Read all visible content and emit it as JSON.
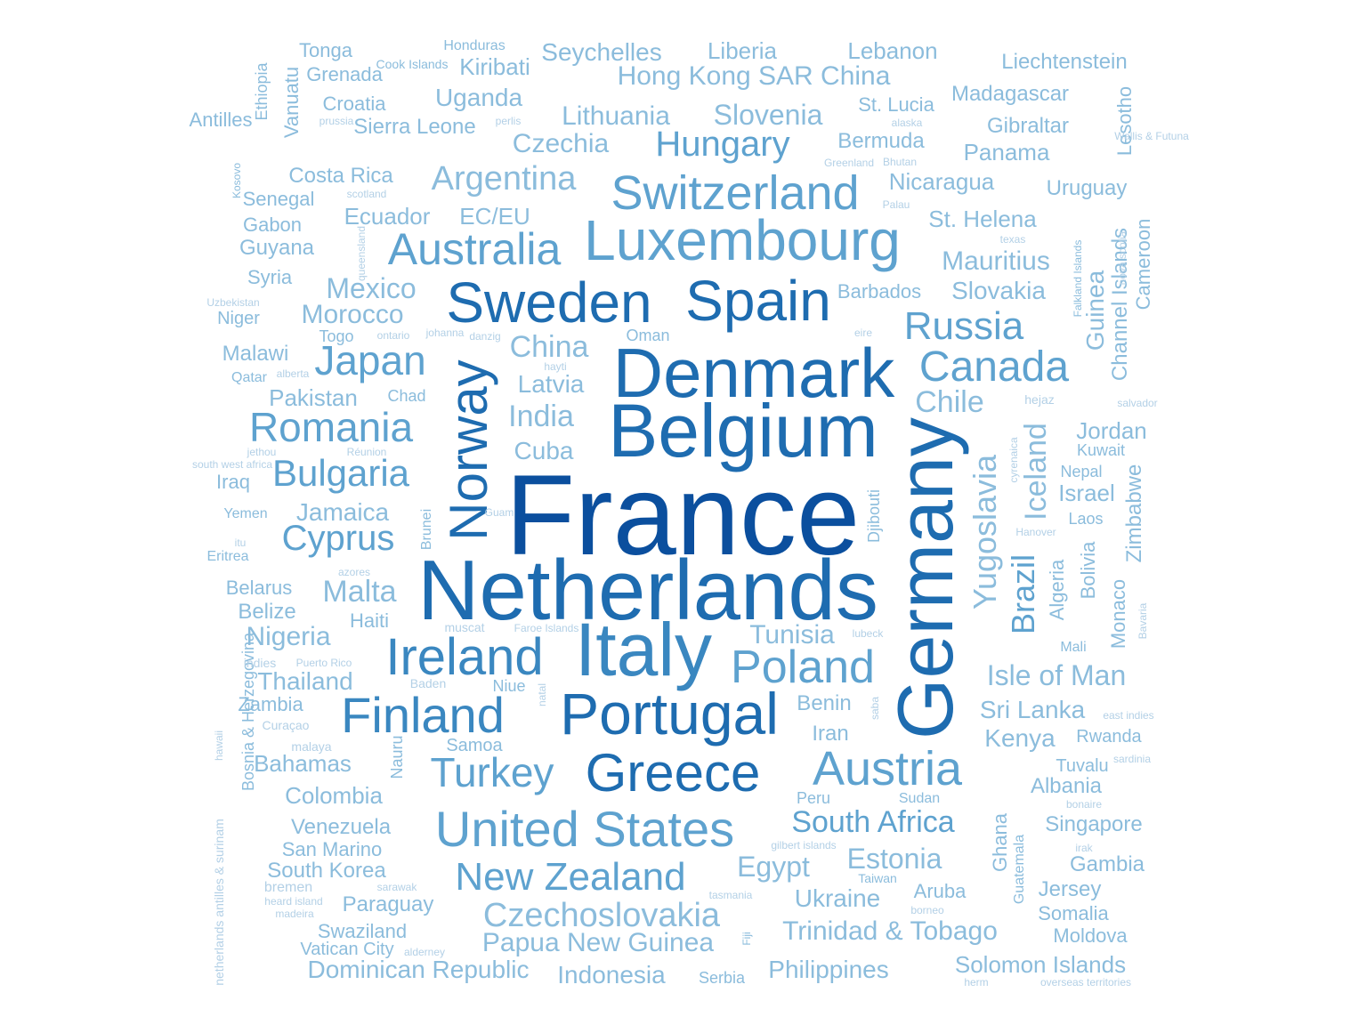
{
  "colors": {
    "t1": "#0b4f9e",
    "t2": "#1e6cb0",
    "t3": "#3a87c0",
    "t4": "#5ea2cf",
    "t5": "#8bbcdc",
    "t6": "#b3d0e6"
  },
  "words": [
    {
      "text": "France",
      "v": false,
      "c": "t1"
    },
    {
      "text": "Netherlands",
      "v": false,
      "c": "t2"
    },
    {
      "text": "Belgium",
      "v": false,
      "c": "t2"
    },
    {
      "text": "Germany",
      "v": true,
      "c": "t2"
    },
    {
      "text": "Denmark",
      "v": false,
      "c": "t2"
    },
    {
      "text": "Italy",
      "v": false,
      "c": "t3"
    },
    {
      "text": "Sweden",
      "v": false,
      "c": "t2"
    },
    {
      "text": "Spain",
      "v": false,
      "c": "t2"
    },
    {
      "text": "Portugal",
      "v": false,
      "c": "t2"
    },
    {
      "text": "Norway",
      "v": true,
      "c": "t2"
    },
    {
      "text": "Greece",
      "v": false,
      "c": "t2"
    },
    {
      "text": "Luxembourg",
      "v": false,
      "c": "t4"
    },
    {
      "text": "Finland",
      "v": false,
      "c": "t3"
    },
    {
      "text": "Ireland",
      "v": false,
      "c": "t3"
    },
    {
      "text": "Switzerland",
      "v": false,
      "c": "t4"
    },
    {
      "text": "United States",
      "v": false,
      "c": "t4"
    },
    {
      "text": "Austria",
      "v": false,
      "c": "t4"
    },
    {
      "text": "Australia",
      "v": false,
      "c": "t4"
    },
    {
      "text": "Poland",
      "v": false,
      "c": "t4"
    },
    {
      "text": "Canada",
      "v": false,
      "c": "t4"
    },
    {
      "text": "Turkey",
      "v": false,
      "c": "t4"
    },
    {
      "text": "Japan",
      "v": false,
      "c": "t4"
    },
    {
      "text": "Romania",
      "v": false,
      "c": "t4"
    },
    {
      "text": "Russia",
      "v": false,
      "c": "t4"
    },
    {
      "text": "New Zealand",
      "v": false,
      "c": "t4"
    },
    {
      "text": "Hungary",
      "v": false,
      "c": "t4"
    },
    {
      "text": "Bulgaria",
      "v": false,
      "c": "t4"
    },
    {
      "text": "Yugoslavia",
      "v": true,
      "c": "t5"
    },
    {
      "text": "Czechoslovakia",
      "v": false,
      "c": "t5"
    },
    {
      "text": "South Africa",
      "v": false,
      "c": "t4"
    },
    {
      "text": "Cyprus",
      "v": false,
      "c": "t4"
    },
    {
      "text": "Argentina",
      "v": false,
      "c": "t5"
    },
    {
      "text": "Brazil",
      "v": true,
      "c": "t4"
    },
    {
      "text": "Iceland",
      "v": true,
      "c": "t5"
    },
    {
      "text": "Chile",
      "v": false,
      "c": "t5"
    },
    {
      "text": "India",
      "v": false,
      "c": "t5"
    },
    {
      "text": "China",
      "v": false,
      "c": "t5"
    },
    {
      "text": "Egypt",
      "v": false,
      "c": "t5"
    },
    {
      "text": "Estonia",
      "v": false,
      "c": "t5"
    },
    {
      "text": "Malta",
      "v": false,
      "c": "t5"
    },
    {
      "text": "Slovenia",
      "v": false,
      "c": "t5"
    },
    {
      "text": "Czechia",
      "v": false,
      "c": "t5"
    },
    {
      "text": "Mexico",
      "v": false,
      "c": "t5"
    },
    {
      "text": "Morocco",
      "v": false,
      "c": "t5"
    },
    {
      "text": "Mauritius",
      "v": false,
      "c": "t5"
    },
    {
      "text": "Slovakia",
      "v": false,
      "c": "t5"
    },
    {
      "text": "Latvia",
      "v": false,
      "c": "t5"
    },
    {
      "text": "Cuba",
      "v": false,
      "c": "t5"
    },
    {
      "text": "Lithuania",
      "v": false,
      "c": "t5"
    },
    {
      "text": "Hong Kong SAR China",
      "v": false,
      "c": "t5"
    },
    {
      "text": "Tunisia",
      "v": false,
      "c": "t5"
    },
    {
      "text": "Isle of Man",
      "v": false,
      "c": "t5"
    },
    {
      "text": "Papua New Guinea",
      "v": false,
      "c": "t5"
    },
    {
      "text": "Trinidad & Tobago",
      "v": false,
      "c": "t5"
    },
    {
      "text": "Ukraine",
      "v": false,
      "c": "t5"
    },
    {
      "text": "Nigeria",
      "v": false,
      "c": "t5"
    },
    {
      "text": "Jamaica",
      "v": false,
      "c": "t5"
    },
    {
      "text": "Pakistan",
      "v": false,
      "c": "t5"
    },
    {
      "text": "Ecuador",
      "v": false,
      "c": "t5"
    },
    {
      "text": "EC/EU",
      "v": false,
      "c": "t5"
    },
    {
      "text": "Sri Lanka",
      "v": false,
      "c": "t5"
    },
    {
      "text": "Kenya",
      "v": false,
      "c": "t5"
    },
    {
      "text": "Jordan",
      "v": false,
      "c": "t5"
    },
    {
      "text": "Israel",
      "v": false,
      "c": "t5"
    },
    {
      "text": "Thailand",
      "v": false,
      "c": "t5"
    },
    {
      "text": "Bahamas",
      "v": false,
      "c": "t5"
    },
    {
      "text": "Colombia",
      "v": false,
      "c": "t5"
    },
    {
      "text": "Venezuela",
      "v": false,
      "c": "t5"
    },
    {
      "text": "South Korea",
      "v": false,
      "c": "t5"
    },
    {
      "text": "Dominican Republic",
      "v": false,
      "c": "t5"
    },
    {
      "text": "Indonesia",
      "v": false,
      "c": "t5"
    },
    {
      "text": "Philippines",
      "v": false,
      "c": "t5"
    },
    {
      "text": "Solomon Islands",
      "v": false,
      "c": "t5"
    },
    {
      "text": "Singapore",
      "v": false,
      "c": "t5"
    },
    {
      "text": "Albania",
      "v": false,
      "c": "t5"
    },
    {
      "text": "Gambia",
      "v": false,
      "c": "t5"
    },
    {
      "text": "Jersey",
      "v": false,
      "c": "t5"
    },
    {
      "text": "Somalia",
      "v": false,
      "c": "t5"
    },
    {
      "text": "Moldova",
      "v": false,
      "c": "t5"
    },
    {
      "text": "Aruba",
      "v": false,
      "c": "t5"
    },
    {
      "text": "Paraguay",
      "v": false,
      "c": "t5"
    },
    {
      "text": "Swaziland",
      "v": false,
      "c": "t5"
    },
    {
      "text": "Vatican City",
      "v": false,
      "c": "t5"
    },
    {
      "text": "San Marino",
      "v": false,
      "c": "t5"
    },
    {
      "text": "Bosnia & Herzegovina",
      "v": true,
      "c": "t5"
    },
    {
      "text": "Zambia",
      "v": false,
      "c": "t5"
    },
    {
      "text": "Belize",
      "v": false,
      "c": "t5"
    },
    {
      "text": "Belarus",
      "v": false,
      "c": "t5"
    },
    {
      "text": "Haiti",
      "v": false,
      "c": "t5"
    },
    {
      "text": "Iraq",
      "v": false,
      "c": "t5"
    },
    {
      "text": "Malawi",
      "v": false,
      "c": "t5"
    },
    {
      "text": "Niger",
      "v": false,
      "c": "t5"
    },
    {
      "text": "Syria",
      "v": false,
      "c": "t5"
    },
    {
      "text": "Guyana",
      "v": false,
      "c": "t5"
    },
    {
      "text": "Gabon",
      "v": false,
      "c": "t5"
    },
    {
      "text": "Senegal",
      "v": false,
      "c": "t5"
    },
    {
      "text": "Costa Rica",
      "v": false,
      "c": "t5"
    },
    {
      "text": "Sierra Leone",
      "v": false,
      "c": "t5"
    },
    {
      "text": "Croatia",
      "v": false,
      "c": "t5"
    },
    {
      "text": "Grenada",
      "v": false,
      "c": "t5"
    },
    {
      "text": "Tonga",
      "v": false,
      "c": "t5"
    },
    {
      "text": "Honduras",
      "v": false,
      "c": "t5"
    },
    {
      "text": "Cook Islands",
      "v": false,
      "c": "t5"
    },
    {
      "text": "Kiribati",
      "v": false,
      "c": "t5"
    },
    {
      "text": "Uganda",
      "v": false,
      "c": "t5"
    },
    {
      "text": "Seychelles",
      "v": false,
      "c": "t5"
    },
    {
      "text": "Liberia",
      "v": false,
      "c": "t5"
    },
    {
      "text": "Lebanon",
      "v": false,
      "c": "t5"
    },
    {
      "text": "Liechtenstein",
      "v": false,
      "c": "t5"
    },
    {
      "text": "Madagascar",
      "v": false,
      "c": "t5"
    },
    {
      "text": "St. Lucia",
      "v": false,
      "c": "t5"
    },
    {
      "text": "Gibraltar",
      "v": false,
      "c": "t5"
    },
    {
      "text": "Bermuda",
      "v": false,
      "c": "t5"
    },
    {
      "text": "Panama",
      "v": false,
      "c": "t5"
    },
    {
      "text": "Nicaragua",
      "v": false,
      "c": "t5"
    },
    {
      "text": "Uruguay",
      "v": false,
      "c": "t5"
    },
    {
      "text": "St. Helena",
      "v": false,
      "c": "t5"
    },
    {
      "text": "Barbados",
      "v": false,
      "c": "t5"
    },
    {
      "text": "Togo",
      "v": false,
      "c": "t5"
    },
    {
      "text": "Oman",
      "v": false,
      "c": "t5"
    },
    {
      "text": "Chad",
      "v": false,
      "c": "t5"
    },
    {
      "text": "Qatar",
      "v": false,
      "c": "t5"
    },
    {
      "text": "Yemen",
      "v": false,
      "c": "t5"
    },
    {
      "text": "Eritrea",
      "v": false,
      "c": "t5"
    },
    {
      "text": "Niue",
      "v": false,
      "c": "t5"
    },
    {
      "text": "Samoa",
      "v": false,
      "c": "t5"
    },
    {
      "text": "Benin",
      "v": false,
      "c": "t5"
    },
    {
      "text": "Iran",
      "v": false,
      "c": "t5"
    },
    {
      "text": "Peru",
      "v": false,
      "c": "t5"
    },
    {
      "text": "Sudan",
      "v": false,
      "c": "t5"
    },
    {
      "text": "Taiwan",
      "v": false,
      "c": "t5"
    },
    {
      "text": "Tuvalu",
      "v": false,
      "c": "t5"
    },
    {
      "text": "Rwanda",
      "v": false,
      "c": "t5"
    },
    {
      "text": "Kuwait",
      "v": false,
      "c": "t5"
    },
    {
      "text": "Nepal",
      "v": false,
      "c": "t5"
    },
    {
      "text": "Laos",
      "v": false,
      "c": "t5"
    },
    {
      "text": "Mali",
      "v": false,
      "c": "t5"
    },
    {
      "text": "Serbia",
      "v": false,
      "c": "t5"
    },
    {
      "text": "Antilles",
      "v": false,
      "c": "t5"
    },
    {
      "text": "Ethiopia",
      "v": true,
      "c": "t5"
    },
    {
      "text": "Vanuatu",
      "v": true,
      "c": "t5"
    },
    {
      "text": "Lesotho",
      "v": true,
      "c": "t5"
    },
    {
      "text": "Guinea",
      "v": true,
      "c": "t5"
    },
    {
      "text": "Falkland Islands",
      "v": true,
      "c": "t5"
    },
    {
      "text": "Channel Islands",
      "v": true,
      "c": "t5"
    },
    {
      "text": "Cameroon",
      "v": true,
      "c": "t5"
    },
    {
      "text": "Zimbabwe",
      "v": true,
      "c": "t5"
    },
    {
      "text": "Monaco",
      "v": true,
      "c": "t5"
    },
    {
      "text": "Bolivia",
      "v": true,
      "c": "t5"
    },
    {
      "text": "Algeria",
      "v": true,
      "c": "t5"
    },
    {
      "text": "Ghana",
      "v": true,
      "c": "t5"
    },
    {
      "text": "Guatemala",
      "v": true,
      "c": "t5"
    },
    {
      "text": "Djibouti",
      "v": true,
      "c": "t5"
    },
    {
      "text": "Brunei",
      "v": true,
      "c": "t5"
    },
    {
      "text": "Nauru",
      "v": true,
      "c": "t5"
    },
    {
      "text": "Fiji",
      "v": true,
      "c": "t5"
    },
    {
      "text": "Kosovo",
      "v": true,
      "c": "t5"
    },
    {
      "text": "scotland",
      "v": false,
      "c": "t6"
    },
    {
      "text": "prussia",
      "v": false,
      "c": "t6"
    },
    {
      "text": "perlis",
      "v": false,
      "c": "t6"
    },
    {
      "text": "alaska",
      "v": false,
      "c": "t6"
    },
    {
      "text": "Greenland",
      "v": false,
      "c": "t6"
    },
    {
      "text": "Bhutan",
      "v": false,
      "c": "t6"
    },
    {
      "text": "Palau",
      "v": false,
      "c": "t6"
    },
    {
      "text": "texas",
      "v": false,
      "c": "t6"
    },
    {
      "text": "Uzbekistan",
      "v": false,
      "c": "t6"
    },
    {
      "text": "ontario",
      "v": false,
      "c": "t6"
    },
    {
      "text": "johanna",
      "v": false,
      "c": "t6"
    },
    {
      "text": "danzig",
      "v": false,
      "c": "t6"
    },
    {
      "text": "eire",
      "v": false,
      "c": "t6"
    },
    {
      "text": "hayti",
      "v": false,
      "c": "t6"
    },
    {
      "text": "alberta",
      "v": false,
      "c": "t6"
    },
    {
      "text": "hejaz",
      "v": false,
      "c": "t6"
    },
    {
      "text": "salvador",
      "v": false,
      "c": "t6"
    },
    {
      "text": "jethou",
      "v": false,
      "c": "t6"
    },
    {
      "text": "Réunion",
      "v": false,
      "c": "t6"
    },
    {
      "text": "south west africa",
      "v": false,
      "c": "t6"
    },
    {
      "text": "Guam",
      "v": false,
      "c": "t6"
    },
    {
      "text": "itu",
      "v": false,
      "c": "t6"
    },
    {
      "text": "Hanover",
      "v": false,
      "c": "t6"
    },
    {
      "text": "azores",
      "v": false,
      "c": "t6"
    },
    {
      "text": "muscat",
      "v": false,
      "c": "t6"
    },
    {
      "text": "Faroe Islands",
      "v": false,
      "c": "t6"
    },
    {
      "text": "lubeck",
      "v": false,
      "c": "t6"
    },
    {
      "text": "indies",
      "v": false,
      "c": "t6"
    },
    {
      "text": "Puerto Rico",
      "v": false,
      "c": "t6"
    },
    {
      "text": "Baden",
      "v": false,
      "c": "t6"
    },
    {
      "text": "Curaçao",
      "v": false,
      "c": "t6"
    },
    {
      "text": "malaya",
      "v": false,
      "c": "t6"
    },
    {
      "text": "east indies",
      "v": false,
      "c": "t6"
    },
    {
      "text": "sardinia",
      "v": false,
      "c": "t6"
    },
    {
      "text": "bonaire",
      "v": false,
      "c": "t6"
    },
    {
      "text": "gilbert islands",
      "v": false,
      "c": "t6"
    },
    {
      "text": "irak",
      "v": false,
      "c": "t6"
    },
    {
      "text": "bremen",
      "v": false,
      "c": "t6"
    },
    {
      "text": "sarawak",
      "v": false,
      "c": "t6"
    },
    {
      "text": "heard island",
      "v": false,
      "c": "t6"
    },
    {
      "text": "madeira",
      "v": false,
      "c": "t6"
    },
    {
      "text": "tasmania",
      "v": false,
      "c": "t6"
    },
    {
      "text": "borneo",
      "v": false,
      "c": "t6"
    },
    {
      "text": "alderney",
      "v": false,
      "c": "t6"
    },
    {
      "text": "herm",
      "v": false,
      "c": "t6"
    },
    {
      "text": "overseas territories",
      "v": false,
      "c": "t6"
    },
    {
      "text": "Wallis & Futuna",
      "v": false,
      "c": "t6"
    },
    {
      "text": "nova scotia",
      "v": true,
      "c": "t6"
    },
    {
      "text": "cyrenaica",
      "v": true,
      "c": "t6"
    },
    {
      "text": "Bavaria",
      "v": true,
      "c": "t6"
    },
    {
      "text": "queensland",
      "v": true,
      "c": "t6"
    },
    {
      "text": "natal",
      "v": true,
      "c": "t6"
    },
    {
      "text": "saba",
      "v": true,
      "c": "t6"
    },
    {
      "text": "hawaii",
      "v": true,
      "c": "t6"
    },
    {
      "text": "netherlands antilles & surinam",
      "v": true,
      "c": "t6"
    },
    {
      "text": "ruanda urundi",
      "v": true,
      "c": "t6"
    }
  ]
}
